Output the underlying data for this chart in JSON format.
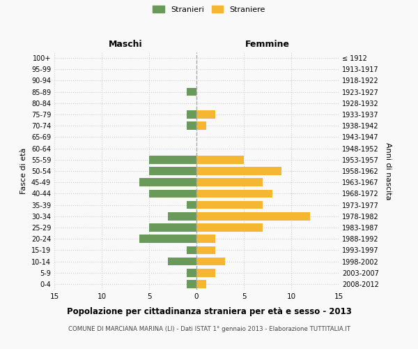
{
  "age_groups": [
    "0-4",
    "5-9",
    "10-14",
    "15-19",
    "20-24",
    "25-29",
    "30-34",
    "35-39",
    "40-44",
    "45-49",
    "50-54",
    "55-59",
    "60-64",
    "65-69",
    "70-74",
    "75-79",
    "80-84",
    "85-89",
    "90-94",
    "95-99",
    "100+"
  ],
  "birth_years": [
    "2008-2012",
    "2003-2007",
    "1998-2002",
    "1993-1997",
    "1988-1992",
    "1983-1987",
    "1978-1982",
    "1973-1977",
    "1968-1972",
    "1963-1967",
    "1958-1962",
    "1953-1957",
    "1948-1952",
    "1943-1947",
    "1938-1942",
    "1933-1937",
    "1928-1932",
    "1923-1927",
    "1918-1922",
    "1913-1917",
    "≤ 1912"
  ],
  "maschi": [
    1,
    1,
    3,
    1,
    6,
    5,
    3,
    1,
    5,
    6,
    5,
    5,
    0,
    0,
    1,
    1,
    0,
    1,
    0,
    0,
    0
  ],
  "femmine": [
    1,
    2,
    3,
    2,
    2,
    7,
    12,
    7,
    8,
    7,
    9,
    5,
    0,
    0,
    1,
    2,
    0,
    0,
    0,
    0,
    0
  ],
  "color_maschi": "#6a9a5a",
  "color_femmine": "#f5b731",
  "title": "Popolazione per cittadinanza straniera per età e sesso - 2013",
  "subtitle": "COMUNE DI MARCIANA MARINA (LI) - Dati ISTAT 1° gennaio 2013 - Elaborazione TUTTITALIA.IT",
  "ylabel_left": "Fasce di età",
  "ylabel_right": "Anni di nascita",
  "xlabel_left": "Maschi",
  "xlabel_right": "Femmine",
  "legend_maschi": "Stranieri",
  "legend_femmine": "Straniere",
  "xlim": 15,
  "background_color": "#f9f9f9",
  "grid_color": "#d0d0d0"
}
